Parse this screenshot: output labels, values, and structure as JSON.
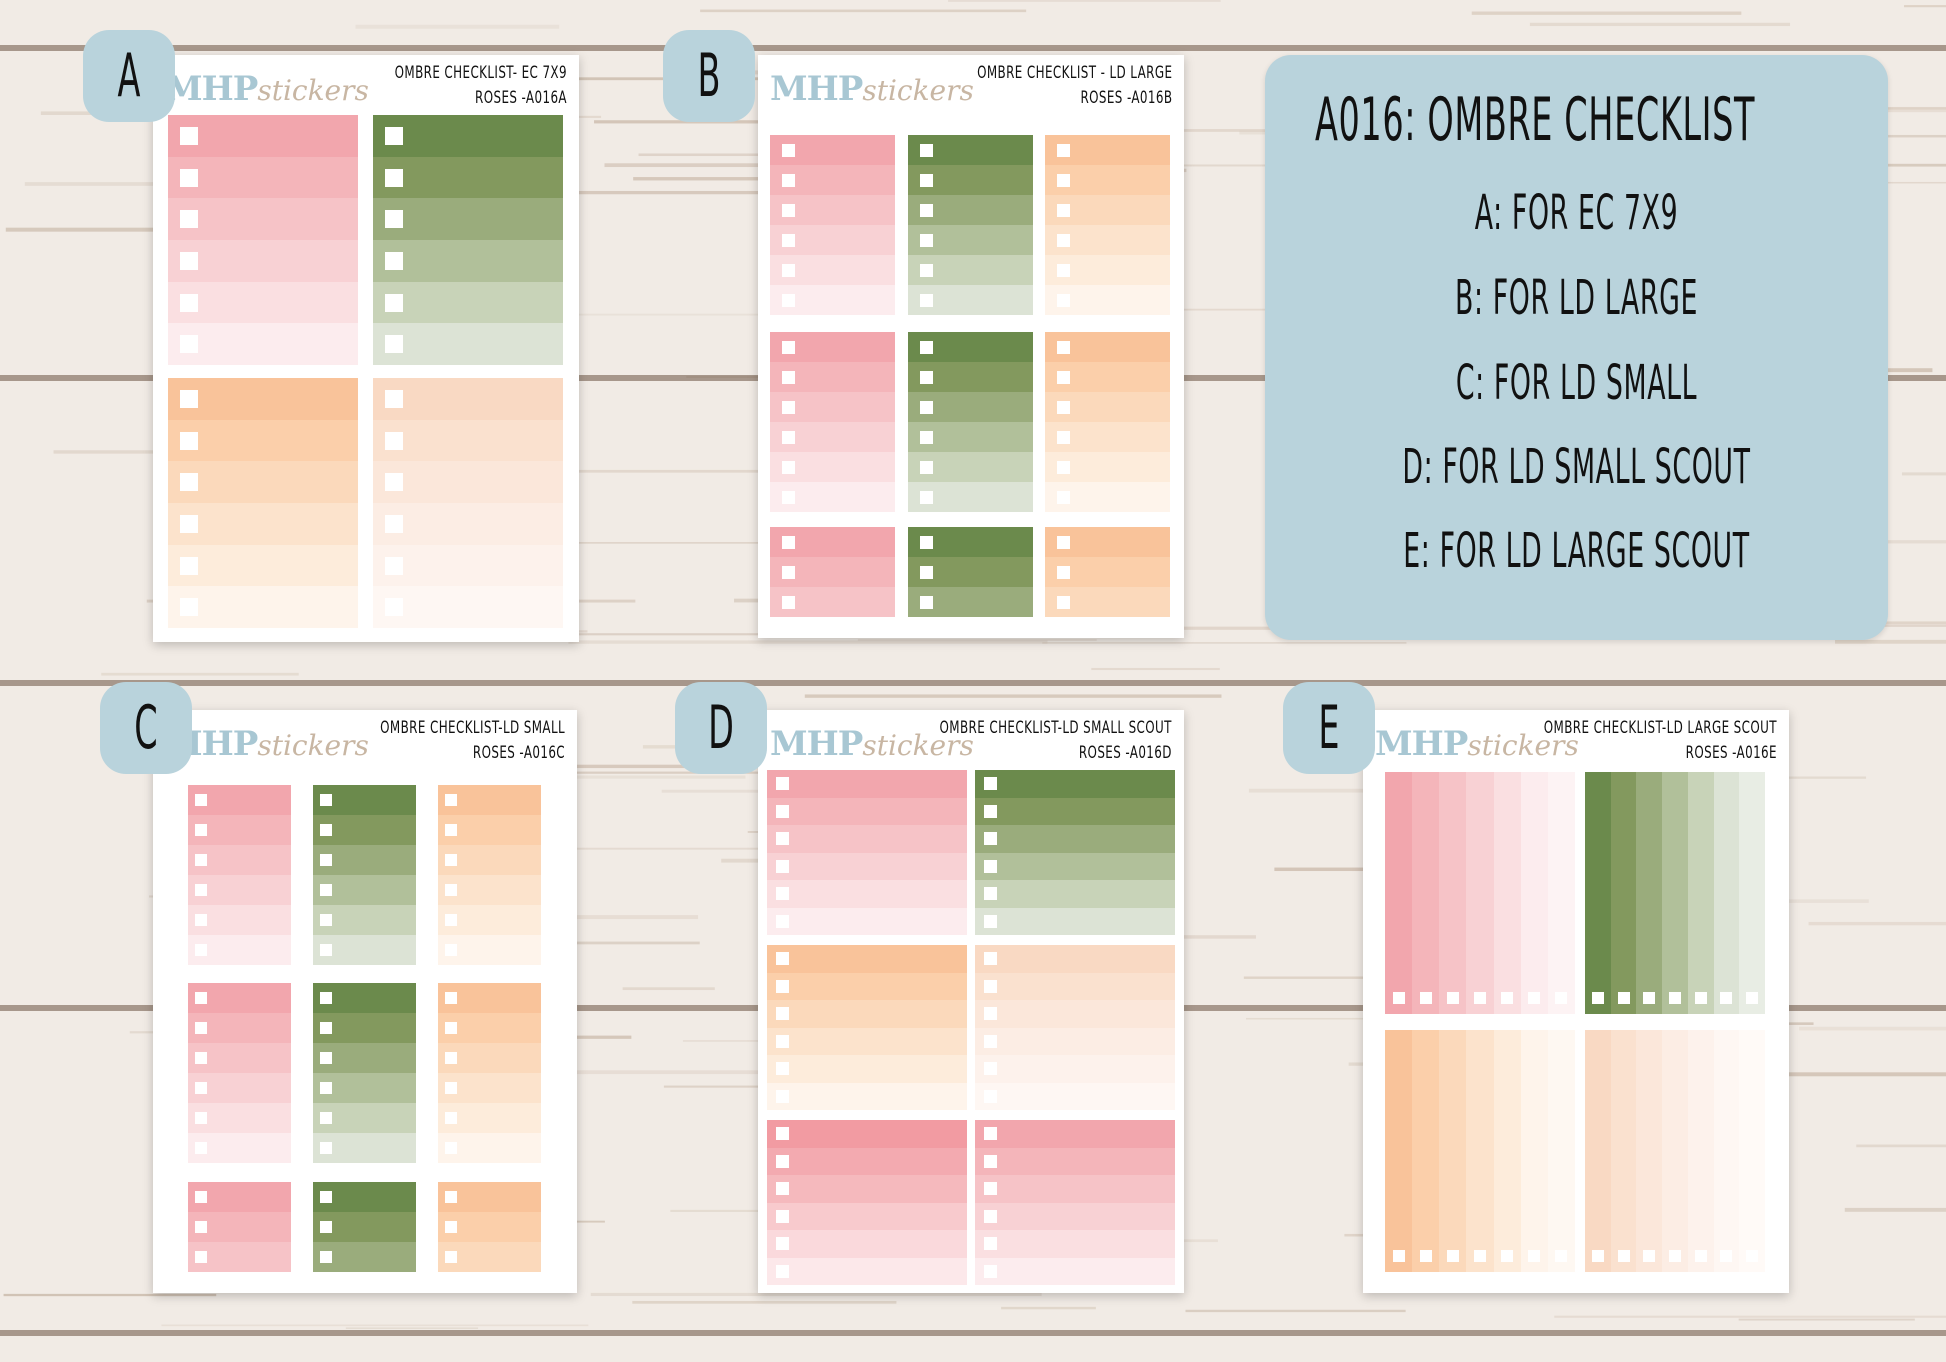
{
  "brand": {
    "logo_main": "MHP",
    "logo_script": "stickers"
  },
  "colors": {
    "pink": [
      "#f2a6ad",
      "#f4b5ba",
      "#f6c3c7",
      "#f8d1d4",
      "#fadfe1",
      "#fcecee",
      "#fdf3f4"
    ],
    "green": [
      "#6b8a4c",
      "#83995e",
      "#9aac7c",
      "#b1c09a",
      "#c8d3b8",
      "#dce3d5",
      "#e8ede4"
    ],
    "peach": [
      "#f9c39a",
      "#fbcfaa",
      "#fbd9bb",
      "#fce3cc",
      "#fdecdb",
      "#fef4eb",
      "#fef8f2"
    ],
    "lightpeach": [
      "#f9d9c3",
      "#fae1cf",
      "#fbe7da",
      "#fcede4",
      "#fdf2ec",
      "#fef7f3",
      "#fffaf7"
    ],
    "deeppink": [
      "#f29ba2",
      "#f3aab0",
      "#f5b9bd",
      "#f8cacd",
      "#fad9dc",
      "#fce8ea",
      "#fdf2f3"
    ]
  },
  "sheets": [
    {
      "badge": "A",
      "title_line1": "OMBRE CHECKLIST- EC 7X9",
      "title_line2": "ROSES -A016A"
    },
    {
      "badge": "B",
      "title_line1": "OMBRE CHECKLIST - LD LARGE",
      "title_line2": "ROSES -A016B"
    },
    {
      "badge": "C",
      "title_line1": "OMBRE CHECKLIST-LD SMALL",
      "title_line2": "ROSES -A016C"
    },
    {
      "badge": "D",
      "title_line1": "OMBRE CHECKLIST-LD SMALL SCOUT",
      "title_line2": "ROSES -A016D"
    },
    {
      "badge": "E",
      "title_line1": "OMBRE CHECKLIST-LD LARGE SCOUT",
      "title_line2": "ROSES -A016E"
    }
  ],
  "info": {
    "title": "A016: OMBRE CHECKLIST",
    "lines": [
      "A: FOR EC 7X9",
      "B: FOR LD LARGE",
      "C: FOR LD SMALL",
      "D: FOR LD SMALL SCOUT",
      "E: FOR LD LARGE SCOUT"
    ]
  }
}
